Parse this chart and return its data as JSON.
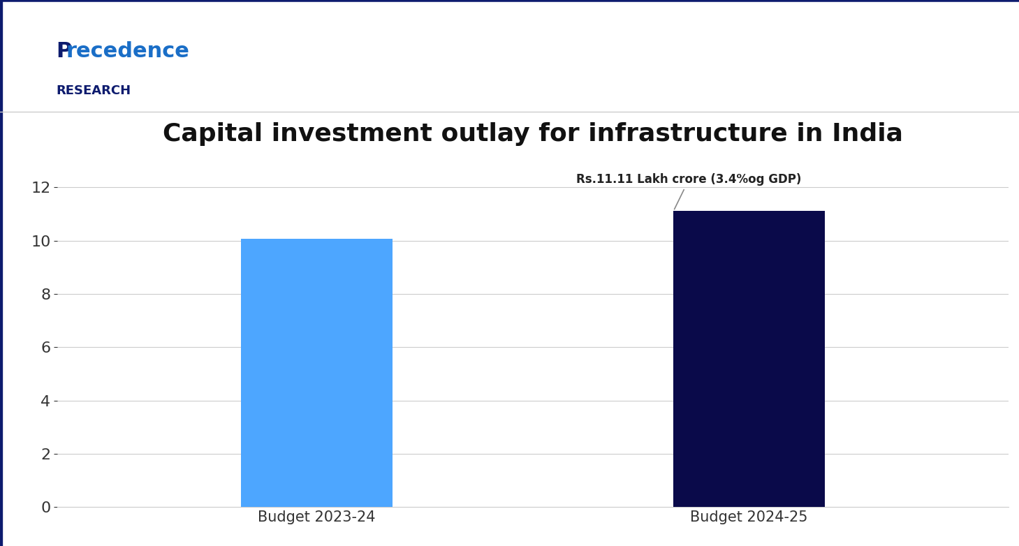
{
  "title": "Capital investment outlay for infrastructure in India",
  "categories": [
    "Budget 2023-24",
    "Budget 2024-25"
  ],
  "values": [
    10.07,
    11.11
  ],
  "bar_colors": [
    "#4da6ff",
    "#0a0a4a"
  ],
  "ylim": [
    0,
    13
  ],
  "yticks": [
    0,
    2,
    4,
    6,
    8,
    10,
    12
  ],
  "annotation_text": "Rs.11.11 Lakh crore (3.4%og GDP)",
  "background_color": "#ffffff",
  "grid_color": "#cccccc",
  "title_fontsize": 26,
  "tick_fontsize": 16,
  "label_fontsize": 15,
  "border_color": "#0d1b6e",
  "logo_color_blue": "#1a6ec7",
  "logo_color_navy": "#0d1b6e"
}
